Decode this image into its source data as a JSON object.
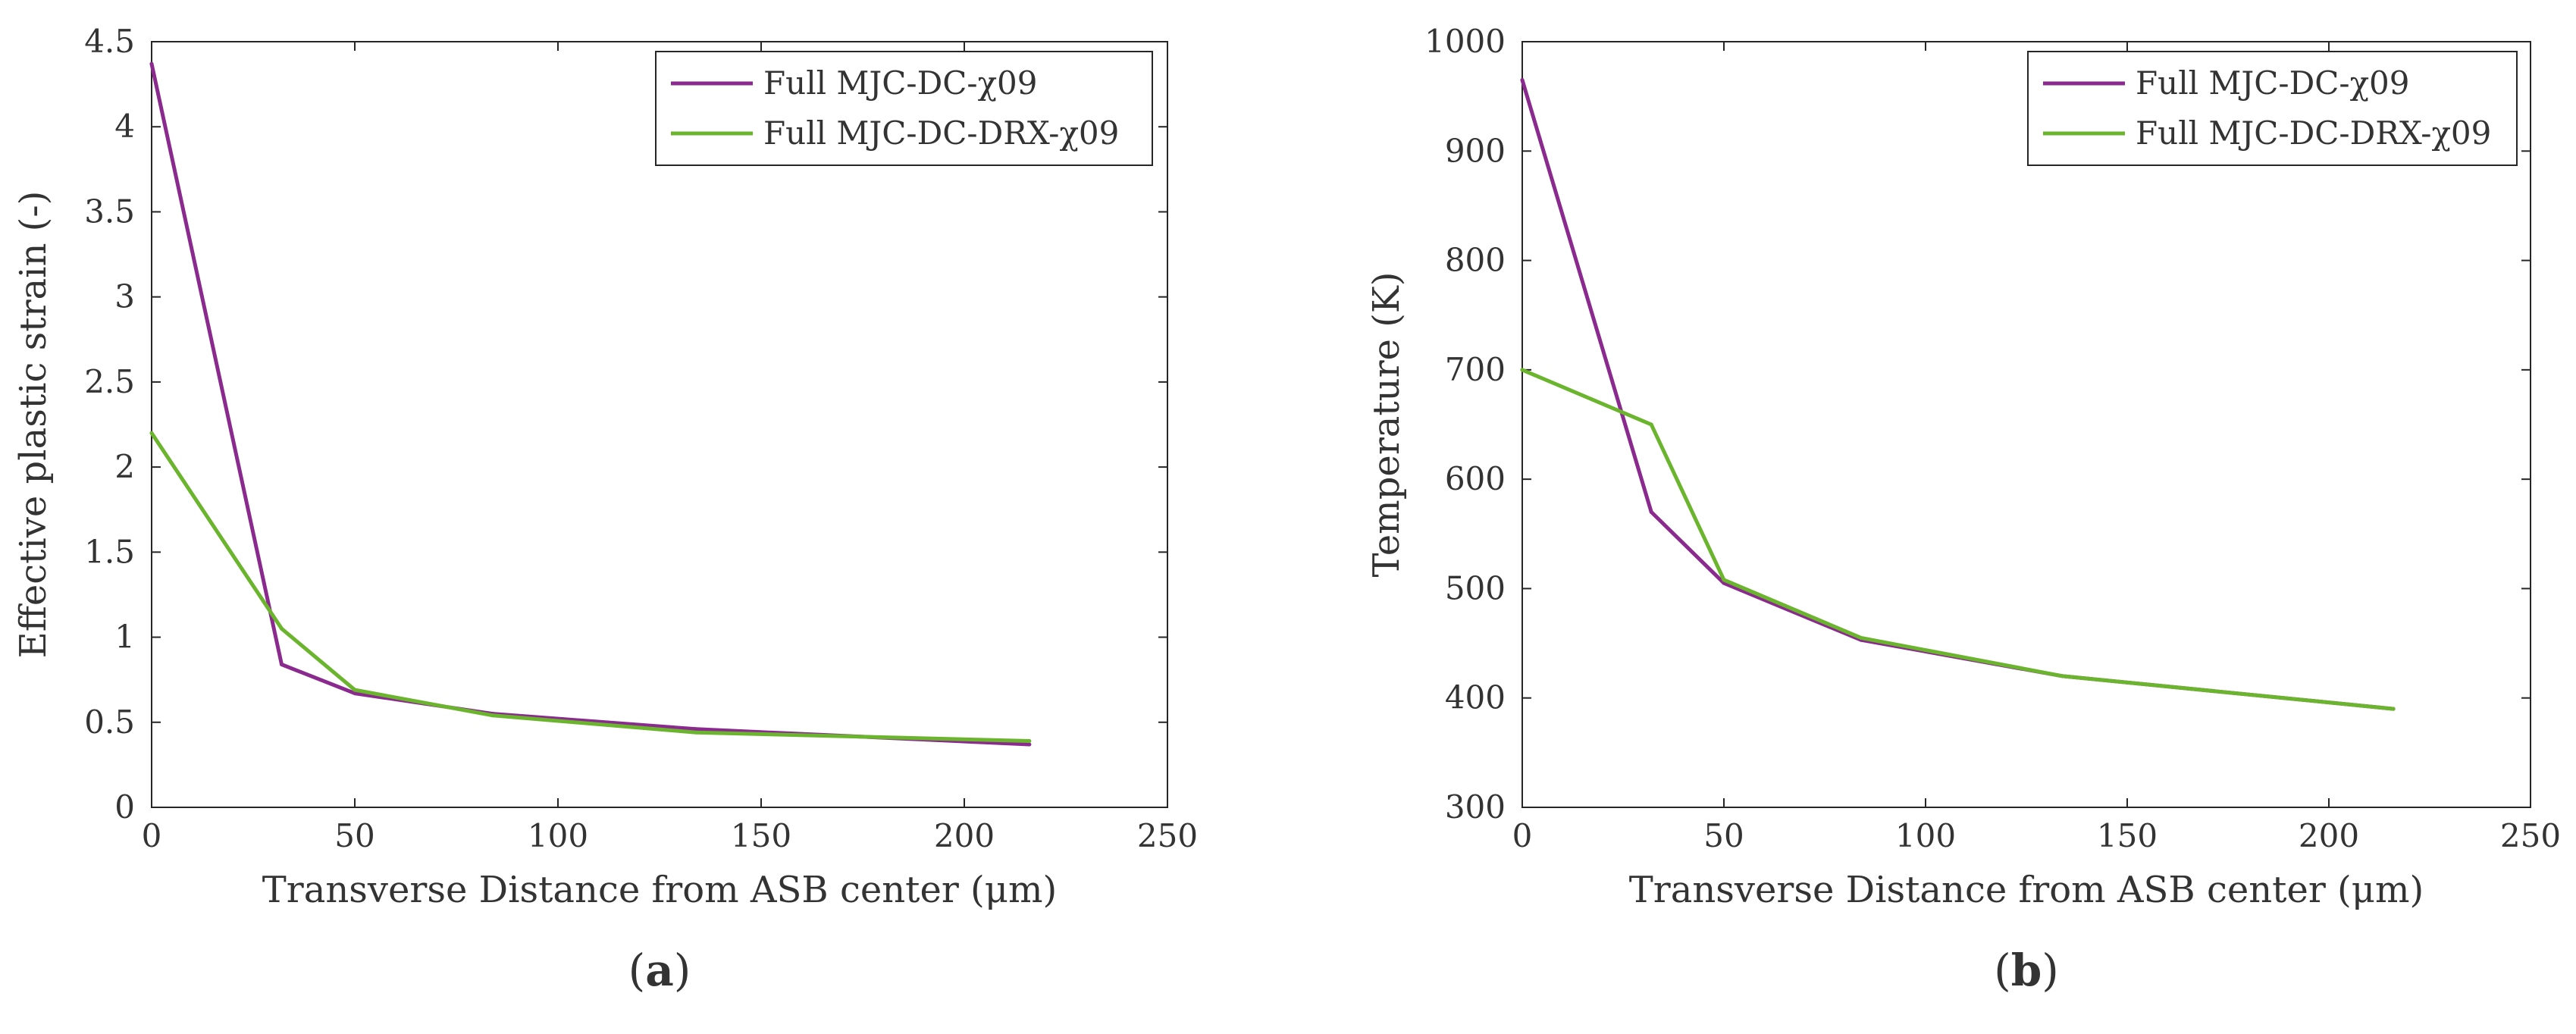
{
  "chart_data": [
    {
      "type": "line",
      "caption_prefix": "(",
      "caption_letter": "a",
      "caption_suffix": ")",
      "title": "",
      "xlabel": "Transverse Distance from ASB center (μm)",
      "ylabel": "Effective plastic strain (-)",
      "xlim": [
        0,
        250
      ],
      "ylim": [
        0,
        4.5
      ],
      "xticks": [
        "0",
        "50",
        "100",
        "150",
        "200",
        "250"
      ],
      "xtick_values": [
        0,
        50,
        100,
        150,
        200,
        250
      ],
      "yticks": [
        "0",
        "0.5",
        "1",
        "1.5",
        "2",
        "2.5",
        "3",
        "3.5",
        "4",
        "4.5"
      ],
      "ytick_values": [
        0,
        0.5,
        1,
        1.5,
        2,
        2.5,
        3,
        3.5,
        4,
        4.5
      ],
      "grid": false,
      "legend_position": "top-right",
      "series": [
        {
          "name": "Full MJC-DC-χ09",
          "color": "#8B2A8E",
          "x": [
            0,
            32,
            50,
            84,
            134,
            216
          ],
          "y": [
            4.37,
            0.84,
            0.67,
            0.55,
            0.46,
            0.37
          ]
        },
        {
          "name": "Full MJC-DC-DRX-χ09",
          "color": "#6BB52E",
          "x": [
            0,
            32,
            50,
            84,
            134,
            216
          ],
          "y": [
            2.2,
            1.05,
            0.69,
            0.54,
            0.44,
            0.39
          ]
        }
      ]
    },
    {
      "type": "line",
      "caption_prefix": "(",
      "caption_letter": "b",
      "caption_suffix": ")",
      "title": "",
      "xlabel": "Transverse Distance from ASB center (μm)",
      "ylabel": "Temperature (K)",
      "xlim": [
        0,
        250
      ],
      "ylim": [
        300,
        1000
      ],
      "xticks": [
        "0",
        "50",
        "100",
        "150",
        "200",
        "250"
      ],
      "xtick_values": [
        0,
        50,
        100,
        150,
        200,
        250
      ],
      "yticks": [
        "300",
        "400",
        "500",
        "600",
        "700",
        "800",
        "900",
        "1000"
      ],
      "ytick_values": [
        300,
        400,
        500,
        600,
        700,
        800,
        900,
        1000
      ],
      "grid": false,
      "legend_position": "top-right",
      "series": [
        {
          "name": "Full MJC-DC-χ09",
          "color": "#8B2A8E",
          "x": [
            0,
            32,
            50,
            84,
            134,
            216
          ],
          "y": [
            965,
            570,
            505,
            453,
            420,
            390
          ]
        },
        {
          "name": "Full MJC-DC-DRX-χ09",
          "color": "#6BB52E",
          "x": [
            0,
            32,
            50,
            84,
            134,
            216
          ],
          "y": [
            700,
            650,
            508,
            455,
            420,
            390
          ]
        }
      ]
    }
  ]
}
